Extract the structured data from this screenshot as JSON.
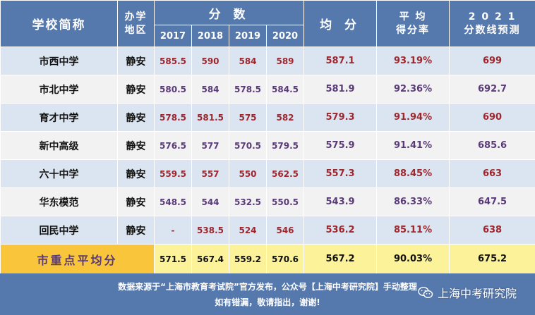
{
  "header": {
    "school": "学校简称",
    "district": [
      "办学",
      "地区"
    ],
    "scores": "分 数",
    "years": [
      "2017",
      "2018",
      "2019",
      "2020"
    ],
    "avg": "均 分",
    "rate": [
      "平 均",
      "得分率"
    ],
    "prediction": [
      "2 0 2 1",
      "分数线预测"
    ]
  },
  "rows": [
    {
      "school": "市西中学",
      "district": "静安",
      "scores": [
        "585.5",
        "590",
        "584",
        "589"
      ],
      "avg": "587.1",
      "rate": "93.19%",
      "prediction": "699"
    },
    {
      "school": "市北中学",
      "district": "静安",
      "scores": [
        "580.5",
        "584",
        "578.5",
        "584.5"
      ],
      "avg": "581.9",
      "rate": "92.36%",
      "prediction": "692.7"
    },
    {
      "school": "育才中学",
      "district": "静安",
      "scores": [
        "578.5",
        "581.5",
        "575",
        "582"
      ],
      "avg": "579.3",
      "rate": "91.94%",
      "prediction": "690"
    },
    {
      "school": "新中高级",
      "district": "静安",
      "scores": [
        "576.5",
        "577",
        "570.5",
        "579.5"
      ],
      "avg": "575.9",
      "rate": "91.41%",
      "prediction": "685.6"
    },
    {
      "school": "六十中学",
      "district": "静安",
      "scores": [
        "559.5",
        "557",
        "550",
        "562.5"
      ],
      "avg": "557.3",
      "rate": "88.45%",
      "prediction": "663"
    },
    {
      "school": "华东模范",
      "district": "静安",
      "scores": [
        "548.5",
        "544",
        "532.5",
        "550.5"
      ],
      "avg": "543.9",
      "rate": "86.33%",
      "prediction": "647.5"
    },
    {
      "school": "回民中学",
      "district": "静安",
      "scores": [
        "-",
        "538.5",
        "524",
        "546"
      ],
      "avg": "536.2",
      "rate": "85.11%",
      "prediction": "638"
    }
  ],
  "summary": {
    "label": "市重点平均分",
    "scores": [
      "571.5",
      "567.4",
      "559.2",
      "570.6"
    ],
    "avg": "567.2",
    "rate": "90.03%",
    "prediction": "675.2"
  },
  "footer": {
    "line1": "数据来源于“上海市教育考试院”官方发布，公众号【上海中考研究院】手动整理",
    "line2": "如有错漏，敬请指出，谢谢!",
    "brand": "上海中考研究院",
    "brand_icon": "wechat-icon"
  },
  "colors": {
    "header_bg": "#5578ad",
    "row_alt_a": "#dbe5f1",
    "row_alt_b": "#f2f2f2",
    "summary_bg": "#fbf29a",
    "summary_label_bg": "#f9c53a",
    "value_red": "#a0262d",
    "value_purple": "#5a3a78"
  }
}
